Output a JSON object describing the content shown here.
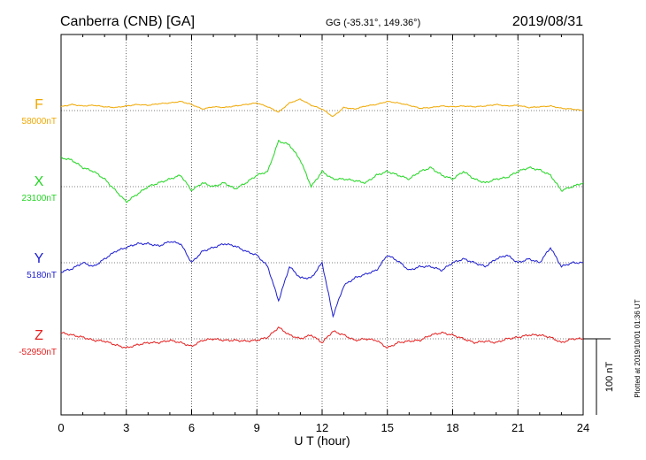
{
  "header": {
    "title": "Canberra (CNB)  [GA]",
    "coords": "GG (-35.31°, 149.36°)",
    "date": "2019/08/31"
  },
  "footer": {
    "plotted": "Plotted at 2019/10/01 01:36 UT"
  },
  "chart_data": {
    "type": "line",
    "xlabel": "U T (hour)",
    "xlim": [
      0,
      24
    ],
    "x_ticks": [
      0,
      3,
      6,
      9,
      12,
      15,
      18,
      21,
      24
    ],
    "grid": true,
    "scale_bar": "100 nT",
    "x": [
      0,
      0.5,
      1,
      1.5,
      2,
      2.5,
      3,
      3.5,
      4,
      4.5,
      5,
      5.5,
      6,
      6.5,
      7,
      7.5,
      8,
      8.5,
      9,
      9.5,
      10,
      10.5,
      11,
      11.5,
      12,
      12.5,
      13,
      13.5,
      14,
      14.5,
      15,
      15.5,
      16,
      16.5,
      17,
      17.5,
      18,
      18.5,
      19,
      19.5,
      20,
      20.5,
      21,
      21.5,
      22,
      22.5,
      23,
      23.5,
      24
    ],
    "series": [
      {
        "name": "F",
        "baseline": "58000nT",
        "color": "#f0a800",
        "offsets": [
          5,
          8,
          6,
          7,
          5,
          4,
          6,
          8,
          7,
          9,
          10,
          12,
          8,
          2,
          5,
          4,
          6,
          8,
          10,
          5,
          -2,
          10,
          15,
          7,
          2,
          -8,
          4,
          2,
          6,
          8,
          12,
          10,
          7,
          3,
          4,
          6,
          5,
          6,
          5,
          6,
          8,
          6,
          7,
          4,
          5,
          6,
          3,
          2,
          0
        ]
      },
      {
        "name": "X",
        "baseline": "23100nT",
        "color": "#22d622",
        "offsets": [
          38,
          35,
          25,
          20,
          10,
          -5,
          -20,
          -10,
          0,
          5,
          10,
          15,
          -5,
          5,
          0,
          5,
          -3,
          5,
          15,
          20,
          60,
          55,
          35,
          0,
          20,
          10,
          10,
          8,
          5,
          15,
          20,
          15,
          10,
          20,
          25,
          15,
          10,
          20,
          10,
          5,
          10,
          12,
          20,
          25,
          22,
          15,
          -5,
          0,
          5
        ]
      },
      {
        "name": "Y",
        "baseline": "5180nT",
        "color": "#1c1cd0",
        "offsets": [
          -12,
          -8,
          0,
          -5,
          5,
          15,
          20,
          25,
          25,
          22,
          28,
          25,
          0,
          15,
          20,
          25,
          22,
          15,
          10,
          -5,
          -50,
          -5,
          -20,
          -20,
          0,
          -70,
          -30,
          -20,
          -15,
          -10,
          10,
          2,
          -10,
          -5,
          -5,
          -10,
          0,
          5,
          0,
          -5,
          5,
          10,
          0,
          5,
          0,
          20,
          -5,
          0,
          0
        ]
      },
      {
        "name": "Z",
        "baseline": "-52950nT",
        "color": "#e52020",
        "offsets": [
          8,
          5,
          2,
          -2,
          -3,
          -8,
          -12,
          -8,
          -5,
          -5,
          -2,
          -5,
          -10,
          -2,
          0,
          -2,
          -2,
          -3,
          -2,
          2,
          15,
          5,
          0,
          5,
          -5,
          10,
          5,
          -2,
          0,
          -2,
          -12,
          -5,
          -3,
          -2,
          5,
          8,
          5,
          0,
          -5,
          -3,
          -5,
          0,
          2,
          5,
          5,
          2,
          -5,
          0,
          0
        ]
      }
    ]
  }
}
